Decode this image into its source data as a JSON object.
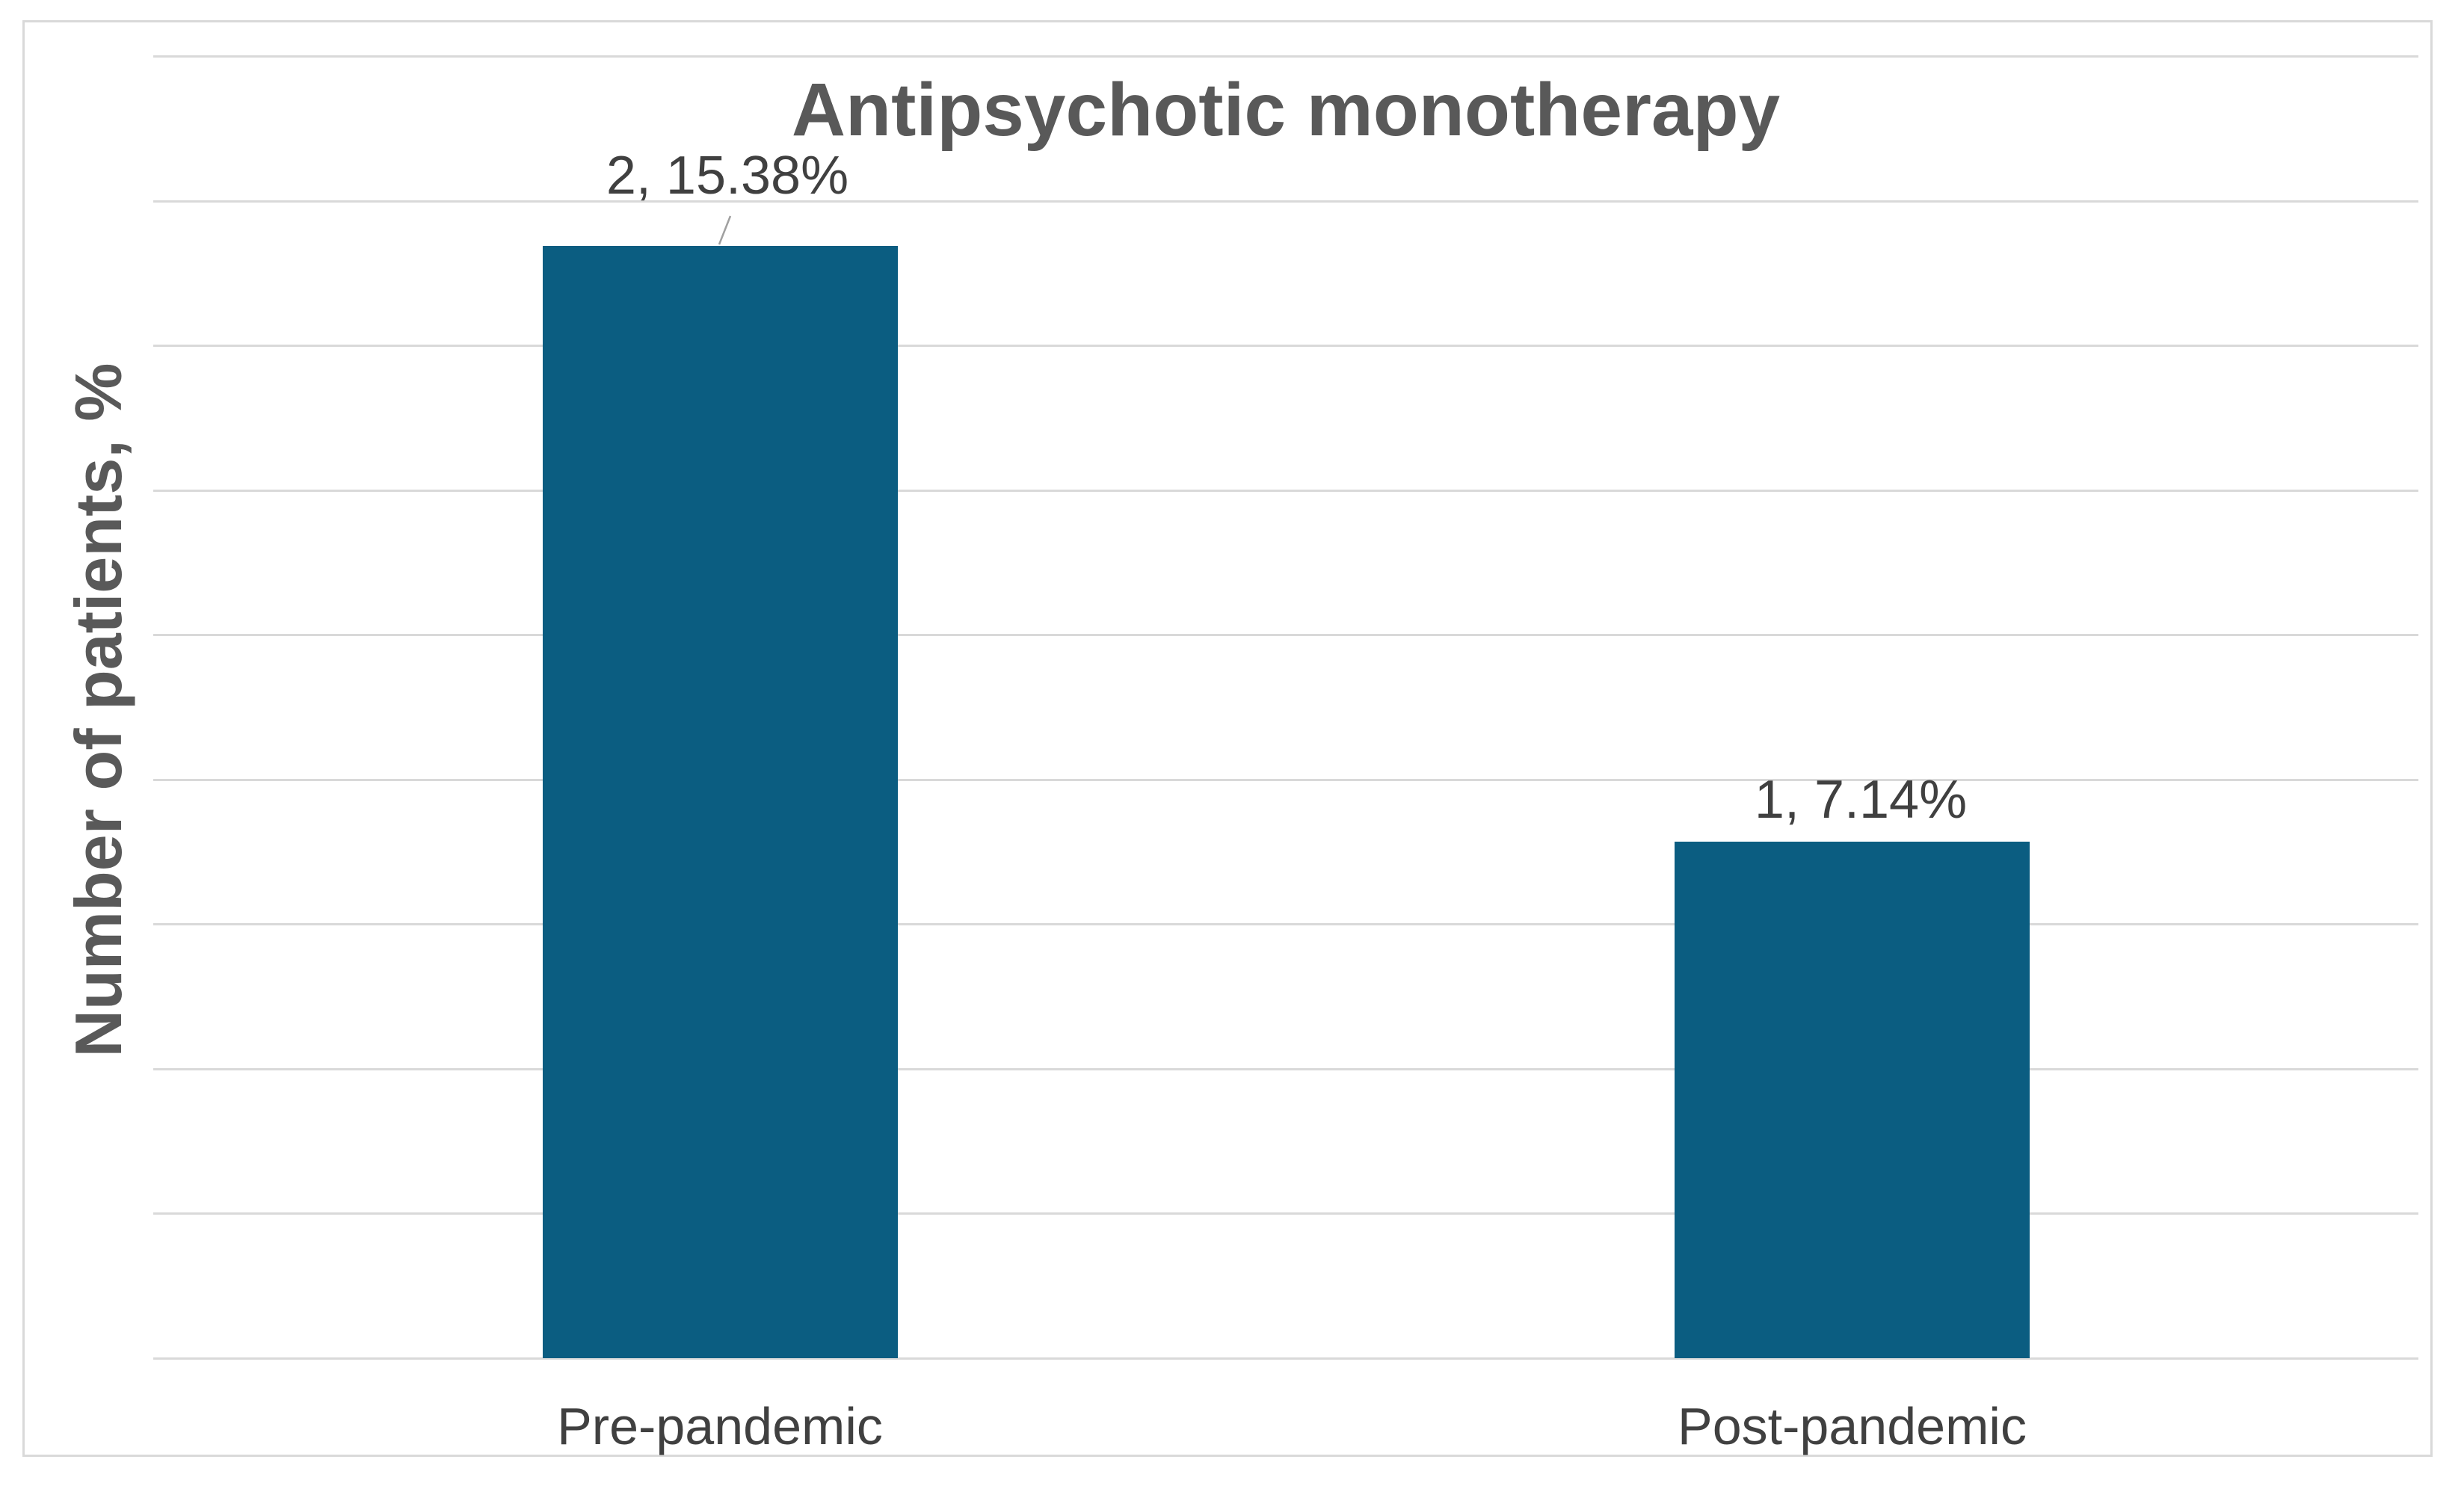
{
  "chart_data": {
    "type": "bar",
    "title": "Antipsychotic monotherapy",
    "xlabel": "",
    "ylabel": "Number of patients, %",
    "categories": [
      "Pre-pandemic",
      "Post-pandemic"
    ],
    "series": [
      {
        "name": "Number of patients, %",
        "values": [
          15.38,
          7.14
        ],
        "counts": [
          2,
          1
        ]
      }
    ],
    "data_labels": [
      "2, 15.38%",
      "1, 7.14%"
    ],
    "ylim": [
      0,
      18
    ],
    "gridline_step": 2,
    "grid": true,
    "legend_position": "none",
    "y_tick_labels_visible": false,
    "colors": {
      "bar": "#0b5d81",
      "gridline": "#d9d9d9",
      "frame_border": "#d9d9d9",
      "title_text": "#595959",
      "axis_title_text": "#595959",
      "data_label_text": "#404040",
      "category_label_text": "#404040",
      "leader_line": "#a0a0a0",
      "background": "#ffffff"
    }
  }
}
